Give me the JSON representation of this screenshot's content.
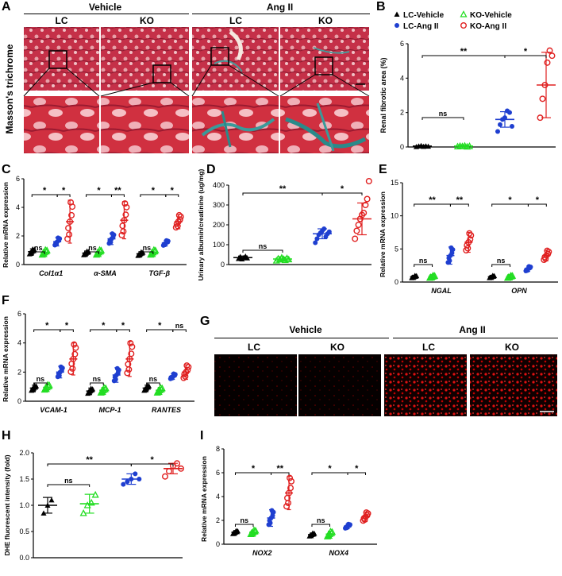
{
  "panel_labels": {
    "A": "A",
    "B": "B",
    "C": "C",
    "D": "D",
    "E": "E",
    "F": "F",
    "G": "G",
    "H": "H",
    "I": "I"
  },
  "panel_a": {
    "group_vehicle": "Vehicle",
    "group_ang": "Ang II",
    "col_lc": "LC",
    "col_ko": "KO",
    "row_label": "Masson's trichrome"
  },
  "panel_g": {
    "group_vehicle": "Vehicle",
    "group_ang": "Ang II",
    "col_lc": "LC",
    "col_ko": "KO"
  },
  "legend": {
    "lc_vehicle": "LC-Vehicle",
    "ko_vehicle": "KO-Vehicle",
    "lc_ang": "LC-Ang II",
    "ko_ang": "KO-Ang II"
  },
  "colors": {
    "lc_vehicle": "#000000",
    "ko_vehicle": "#22dd22",
    "lc_ang": "#1f3fd0",
    "ko_ang": "#e02020"
  },
  "chart_data": [
    {
      "id": "B",
      "type": "scatter",
      "ylabel": "Renal fibrotic area (%)",
      "ylim": [
        0,
        6
      ],
      "yticks": [
        "0",
        "2",
        "4",
        "6"
      ],
      "groups": [
        "LC-Vehicle",
        "KO-Vehicle",
        "LC-Ang II",
        "KO-Ang II"
      ],
      "means": [
        0.05,
        0.05,
        1.6,
        3.6
      ],
      "sd": [
        0.05,
        0.05,
        0.45,
        1.9
      ],
      "points": [
        [
          0.02,
          0.05,
          0.08,
          0.03,
          0.06,
          0.04
        ],
        [
          0.03,
          0.06,
          0.04,
          0.07,
          0.02,
          0.05
        ],
        [
          0.9,
          1.3,
          1.6,
          1.7,
          2.1,
          2.0,
          1.2
        ],
        [
          1.7,
          2.8,
          3.6,
          4.9,
          5.6,
          5.3
        ]
      ],
      "significance": [
        {
          "label": "ns"
        },
        {
          "label": "**"
        },
        {
          "label": "*"
        }
      ]
    },
    {
      "id": "C",
      "type": "scatter",
      "ylabel": "Relative mRNA expression",
      "ylim": [
        0,
        6
      ],
      "yticks": [
        "0",
        "2",
        "4",
        "6"
      ],
      "categories": [
        "Col1α1",
        "α-SMA",
        "TGF-β"
      ],
      "means": [
        [
          0.9,
          0.85,
          1.6,
          3.0
        ],
        [
          0.8,
          0.85,
          1.8,
          3.1
        ],
        [
          0.75,
          0.85,
          1.5,
          3.0
        ]
      ],
      "sd": [
        [
          0.2,
          0.2,
          0.3,
          1.5
        ],
        [
          0.15,
          0.2,
          0.4,
          1.3
        ],
        [
          0.15,
          0.2,
          0.2,
          0.5
        ]
      ],
      "sig_top": [
        [
          "*",
          "*"
        ],
        [
          "*",
          "**"
        ],
        [
          "*",
          "*"
        ]
      ],
      "sig_bottom": [
        "ns",
        "ns",
        "ns"
      ]
    },
    {
      "id": "D",
      "type": "scatter",
      "ylabel": "Urinary albumin/creatinine (ug/mg)",
      "ylim": [
        0,
        400
      ],
      "yticks": [
        "0",
        "100",
        "200",
        "300",
        "400"
      ],
      "groups": [
        "LC-Vehicle",
        "KO-Vehicle",
        "LC-Ang II",
        "KO-Ang II"
      ],
      "means": [
        35,
        28,
        155,
        230
      ],
      "sd": [
        8,
        10,
        25,
        80
      ],
      "points": [
        [
          30,
          40,
          28,
          35,
          42,
          33
        ],
        [
          20,
          30,
          25,
          35,
          28,
          22,
          32,
          26
        ],
        [
          110,
          130,
          150,
          160,
          170,
          180,
          140,
          155,
          165
        ],
        [
          130,
          170,
          200,
          230,
          250,
          260,
          300,
          330,
          420
        ]
      ],
      "significance": [
        {
          "label": "ns"
        },
        {
          "label": "**"
        },
        {
          "label": "*"
        }
      ]
    },
    {
      "id": "E",
      "type": "scatter",
      "ylabel": "Relative mRNA expression",
      "ylim": [
        0,
        15
      ],
      "yticks": [
        "0",
        "5",
        "10",
        "15"
      ],
      "categories": [
        "NGAL",
        "OPN"
      ],
      "means": [
        [
          0.8,
          0.8,
          4.0,
          6.0
        ],
        [
          0.8,
          0.8,
          2.0,
          4.0
        ]
      ],
      "sd": [
        [
          0.2,
          0.2,
          1.3,
          1.5
        ],
        [
          0.2,
          0.2,
          0.4,
          0.8
        ]
      ],
      "sig_top": [
        [
          "**",
          "**"
        ],
        [
          "*",
          "*"
        ]
      ],
      "sig_bottom": [
        "ns",
        "ns"
      ]
    },
    {
      "id": "F",
      "type": "scatter",
      "ylabel": "Relative mRNA expression",
      "ylim": [
        0,
        6
      ],
      "yticks": [
        "0",
        "2",
        "4",
        "6"
      ],
      "categories": [
        "VCAM-1",
        "MCP-1",
        "RANTES"
      ],
      "means": [
        [
          0.9,
          0.95,
          2.0,
          2.9
        ],
        [
          0.7,
          0.75,
          1.8,
          2.9
        ],
        [
          0.9,
          0.75,
          1.7,
          2.0
        ]
      ],
      "sd": [
        [
          0.2,
          0.2,
          0.4,
          1.1
        ],
        [
          0.2,
          0.2,
          0.5,
          1.2
        ],
        [
          0.2,
          0.2,
          0.2,
          0.5
        ]
      ],
      "sig_top": [
        [
          "*",
          "*"
        ],
        [
          "*",
          "*"
        ],
        [
          "*",
          "ns"
        ]
      ],
      "sig_bottom": [
        "ns",
        "ns",
        "ns"
      ]
    },
    {
      "id": "H",
      "type": "scatter",
      "ylabel": "DHE fluorescent intensity (fold)",
      "ylim": [
        0.0,
        2.0
      ],
      "yticks": [
        "0.0",
        "0.5",
        "1.0",
        "1.5",
        "2.0"
      ],
      "groups": [
        "LC-Vehicle",
        "KO-Vehicle",
        "LC-Ang II",
        "KO-Ang II"
      ],
      "means": [
        1.0,
        1.03,
        1.5,
        1.7
      ],
      "sd": [
        0.15,
        0.18,
        0.1,
        0.1
      ],
      "points": [
        [
          0.85,
          1.0,
          1.1
        ],
        [
          0.85,
          1.0,
          1.05,
          1.2
        ],
        [
          1.4,
          1.45,
          1.5,
          1.6,
          1.5
        ],
        [
          1.55,
          1.65,
          1.75,
          1.8,
          1.7
        ]
      ],
      "significance": [
        {
          "label": "ns"
        },
        {
          "label": "**"
        },
        {
          "label": "*"
        }
      ]
    },
    {
      "id": "I",
      "type": "scatter",
      "ylabel": "Relative mRNA expression",
      "ylim": [
        0,
        8
      ],
      "yticks": [
        "0",
        "2",
        "4",
        "6",
        "8"
      ],
      "categories": [
        "NOX2",
        "NOX4"
      ],
      "means": [
        [
          1.0,
          1.0,
          2.2,
          4.3
        ],
        [
          0.8,
          0.85,
          1.5,
          2.3
        ]
      ],
      "sd": [
        [
          0.15,
          0.2,
          0.7,
          1.4
        ],
        [
          0.15,
          0.25,
          0.2,
          0.4
        ]
      ],
      "sig_top": [
        [
          "*",
          "**"
        ],
        [
          "*",
          "*"
        ]
      ],
      "sig_bottom": [
        "ns",
        "ns"
      ]
    }
  ]
}
